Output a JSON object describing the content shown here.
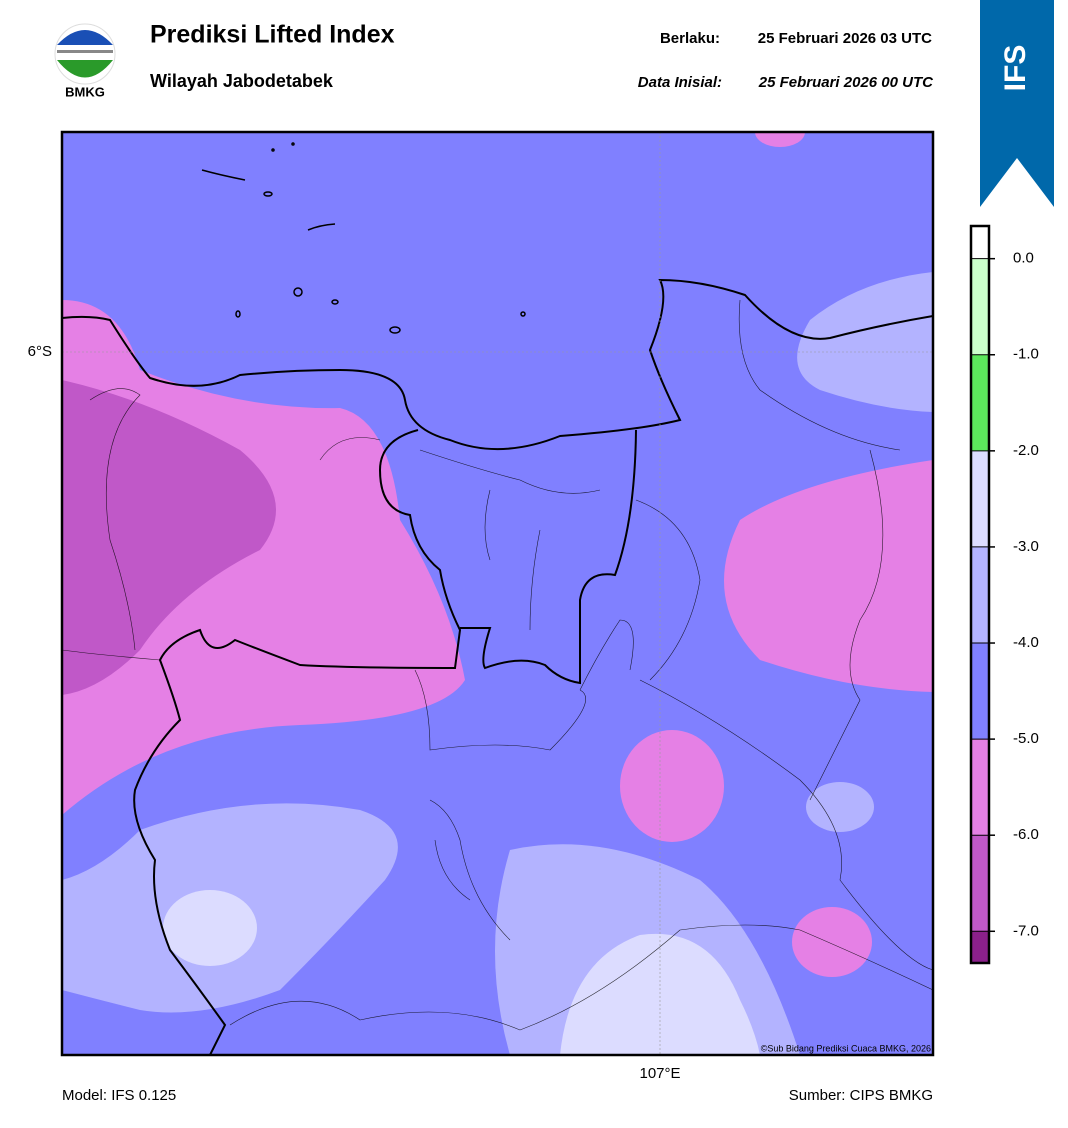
{
  "header": {
    "logo_text": "BMKG",
    "title": "Prediksi Lifted Index",
    "subtitle": "Wilayah Jabodetabek",
    "valid_label": "Berlaku:",
    "valid_time": "25 Februari 2026 03 UTC",
    "init_label": "Data Inisial:",
    "init_time": "25 Februari 2026 00 UTC",
    "badge": "IFS"
  },
  "map": {
    "lat_label": "6°S",
    "lon_label": "107°E",
    "credit": "©Sub Bidang Prediksi Cuaca BMKG, 2026"
  },
  "colorbar": {
    "lim": [
      -7.33,
      0.34
    ],
    "ticks": [
      {
        "value": 0,
        "label": "0.0"
      },
      {
        "value": -1,
        "label": "-1.0"
      },
      {
        "value": -2,
        "label": "-2.0"
      },
      {
        "value": -3,
        "label": "-3.0"
      },
      {
        "value": -4,
        "label": "-4.0"
      },
      {
        "value": -5,
        "label": "-5.0"
      },
      {
        "value": -6,
        "label": "-6.0"
      },
      {
        "value": -7,
        "label": "-7.0"
      }
    ],
    "colors": [
      "#ffffff",
      "#ccffcc",
      "#5ce65c",
      "#dcdcff",
      "#b3b3ff",
      "#8080ff",
      "#e580e5",
      "#c058c8",
      "#8b208b"
    ]
  },
  "footer": {
    "model": "Model: IFS 0.125",
    "source": "Sumber: CIPS BMKG"
  }
}
